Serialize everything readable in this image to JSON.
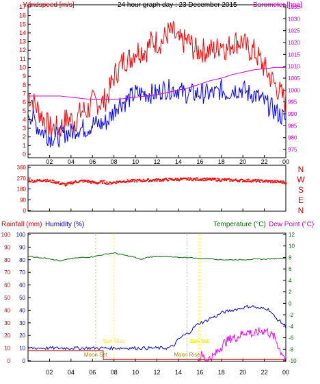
{
  "colors": {
    "wind": "#ff0000",
    "gust": "#ff0000",
    "avg": "#0000ff",
    "baro": "#cc00cc",
    "direction": "#ff0000",
    "rain": "#cc0000",
    "humidity": "#0000cc",
    "temperature": "#006600",
    "dewpoint": "#ff00ff",
    "suntext": "#ffee00",
    "moontext": "#aa8800"
  },
  "chart_data": [
    {
      "type": "line",
      "title": "24 hour graph day : 23 December 2015",
      "left_axis_label": "Windspeed [m/s]",
      "right_axis_label": "Barometer [hpa]",
      "x_ticks": [
        "02",
        "04",
        "06",
        "08",
        "10",
        "12",
        "14",
        "16",
        "18",
        "20",
        "22",
        "00"
      ],
      "x_range": [
        0,
        24
      ],
      "left_ticks": [
        "0",
        "1",
        "2",
        "3",
        "4",
        "5",
        "6",
        "7",
        "8",
        "9",
        "10",
        "11",
        "12",
        "13",
        "14",
        "15",
        "16",
        "17"
      ],
      "left_range": [
        0,
        17
      ],
      "right_ticks": [
        "975",
        "980",
        "985",
        "990",
        "995",
        "1000",
        "1005",
        "1010",
        "1015",
        "1020",
        "1025",
        "1030",
        "1035"
      ],
      "right_range": [
        973,
        1035
      ],
      "series": [
        {
          "axis": "left",
          "x": [
            0,
            0.5,
            1,
            1.5,
            2,
            2.5,
            3,
            3.5,
            4,
            4.5,
            5,
            5.5,
            6,
            6.5,
            7,
            7.5,
            8,
            8.5,
            9,
            9.5,
            10,
            10.5,
            11,
            11.5,
            12,
            12.5,
            13,
            13.5,
            14,
            14.5,
            15,
            15.5,
            16,
            16.5,
            17,
            17.5,
            18,
            18.5,
            19,
            19.5,
            20,
            20.5,
            21,
            21.5,
            22,
            22.5,
            23,
            23.5,
            24
          ],
          "values": [
            7,
            6,
            5,
            4,
            3,
            3,
            3,
            4,
            4,
            4,
            5,
            5,
            6,
            6,
            6,
            7,
            9,
            10,
            11,
            11,
            12,
            12,
            12,
            13,
            13,
            13,
            14,
            14,
            13,
            13,
            13,
            12,
            12,
            12,
            12,
            12,
            13,
            12,
            13,
            13,
            13,
            12,
            12,
            11,
            10,
            9,
            8,
            7,
            6
          ]
        },
        {
          "axis": "left",
          "x": [
            0,
            0.5,
            1,
            1.5,
            2,
            2.5,
            3,
            3.5,
            4,
            4.5,
            5,
            5.5,
            6,
            6.5,
            7,
            7.5,
            8,
            8.5,
            9,
            9.5,
            10,
            10.5,
            11,
            11.5,
            12,
            12.5,
            13,
            13.5,
            14,
            14.5,
            15,
            15.5,
            16,
            16.5,
            17,
            17.5,
            18,
            18.5,
            19,
            19.5,
            20,
            20.5,
            21,
            21.5,
            22,
            22.5,
            23,
            23.5,
            24
          ],
          "values": [
            5,
            4,
            3,
            2.5,
            2,
            2,
            2,
            2.5,
            2.5,
            3,
            3,
            3,
            3.5,
            3.5,
            3.5,
            4,
            5,
            6,
            6,
            6.5,
            7,
            7,
            7,
            7,
            7,
            7.5,
            7.5,
            7.5,
            7.5,
            7,
            7,
            7,
            7,
            7,
            7,
            7,
            7.5,
            7,
            7.5,
            7.5,
            7.5,
            7,
            7,
            6.5,
            6,
            5.5,
            5,
            4.5,
            4
          ]
        },
        {
          "axis": "right",
          "x": [
            0,
            1,
            2,
            3,
            4,
            5,
            6,
            7,
            8,
            9,
            10,
            11,
            12,
            13,
            14,
            15,
            16,
            17,
            18,
            19,
            20,
            21,
            22,
            23,
            24
          ],
          "values": [
            997.5,
            997.5,
            997.5,
            997.5,
            997,
            996.5,
            996,
            996,
            996,
            996.5,
            997,
            997.5,
            998,
            999,
            1000,
            1001,
            1002.5,
            1004,
            1005,
            1006.5,
            1007.5,
            1008.5,
            1009,
            1009.5,
            1009.5
          ]
        }
      ]
    },
    {
      "type": "scatter",
      "label_letters": [
        "N",
        "W",
        "S",
        "E",
        "N"
      ],
      "y_ticks": [
        "360",
        "270",
        "180",
        "90",
        "0"
      ],
      "y_range": [
        0,
        360
      ],
      "x_ticks": [
        "02",
        "04",
        "06",
        "08",
        "10",
        "12",
        "14",
        "16",
        "18",
        "20",
        "22",
        "00"
      ],
      "x_range": [
        0,
        24
      ],
      "series": [
        {
          "x": [
            0,
            0.5,
            1,
            1.5,
            2,
            2.5,
            3,
            3.5,
            4,
            4.5,
            5,
            5.5,
            6,
            6.5,
            7,
            7.5,
            8,
            8.5,
            9,
            9.5,
            10,
            10.5,
            11,
            11.5,
            12,
            12.5,
            13,
            13.5,
            14,
            14.5,
            15,
            15.5,
            16,
            16.5,
            17,
            17.5,
            18,
            18.5,
            19,
            19.5,
            20,
            20.5,
            21,
            21.5,
            22,
            22.5,
            23,
            23.5,
            24
          ],
          "values": [
            250,
            245,
            250,
            255,
            245,
            240,
            225,
            215,
            230,
            240,
            245,
            245,
            235,
            230,
            240,
            225,
            235,
            240,
            245,
            245,
            248,
            250,
            252,
            252,
            255,
            255,
            258,
            258,
            260,
            260,
            262,
            260,
            262,
            260,
            258,
            258,
            255,
            255,
            253,
            252,
            250,
            250,
            248,
            246,
            245,
            242,
            240,
            238,
            235
          ]
        }
      ]
    },
    {
      "type": "line",
      "left_axis_label": "Rainfall (mm)",
      "left2_axis_label": "Humidity (%)",
      "right_axis_label": "Temperature (°C)",
      "right2_axis_label": "Dew Point (°C)",
      "x_ticks": [
        "02",
        "04",
        "06",
        "08",
        "10",
        "12",
        "14",
        "16",
        "18",
        "20",
        "22",
        "00"
      ],
      "x_range": [
        0,
        24
      ],
      "left_ticks": [
        "0",
        "10",
        "20",
        "30",
        "40",
        "50",
        "60",
        "70",
        "80",
        "90",
        "100"
      ],
      "left_range": [
        0,
        100
      ],
      "right_ticks": [
        "12",
        "10",
        "8",
        "6",
        "4",
        "2",
        "0",
        "-2",
        "-4",
        "-6",
        "-8",
        "-10"
      ],
      "right_range": [
        -10,
        12
      ],
      "annotations": [
        {
          "text": "Sun Rise",
          "x": 8.0
        },
        {
          "text": "Sun Set",
          "x": 15.9
        },
        {
          "text": "Moon Set",
          "x": 6.3
        },
        {
          "text": "Moon Rise",
          "x": 14.8
        },
        {
          "text": "Sun Set",
          "x": 16.0
        }
      ],
      "series": [
        {
          "name": "Temperature",
          "axis": "right",
          "x": [
            0,
            1,
            2,
            3,
            4,
            5,
            6,
            7,
            8,
            9,
            10,
            10.5,
            11,
            12,
            13,
            14,
            15,
            16,
            17,
            18,
            19,
            20,
            21,
            22,
            23,
            24
          ],
          "values": [
            8.2,
            8.0,
            7.8,
            7.4,
            7.8,
            8.0,
            8.1,
            8.5,
            8.8,
            8.4,
            8.0,
            7.6,
            8.0,
            8.2,
            8.1,
            8.0,
            8.0,
            7.8,
            7.8,
            7.6,
            7.6,
            7.6,
            7.7,
            7.7,
            7.8,
            7.9
          ]
        },
        {
          "name": "Dew Point",
          "axis": "right",
          "x": [
            15.8,
            16.2,
            16.6,
            17,
            17.4,
            17.8,
            18.2,
            18.6,
            19,
            19.4,
            19.8,
            20.2,
            20.6,
            21,
            21.4,
            21.8,
            22.2,
            22.6,
            23,
            23.4,
            23.8,
            24
          ],
          "values": [
            -10,
            -9,
            -10,
            -9.5,
            -9,
            -8,
            -7,
            -6.5,
            -6,
            -6,
            -5.5,
            -5,
            -5,
            -5.5,
            -5,
            -4.8,
            -4.7,
            -5.5,
            -6,
            -8,
            -9,
            -10
          ]
        },
        {
          "name": "Humidity",
          "axis": "left",
          "x": [
            0,
            2,
            4,
            6,
            8,
            10,
            12,
            13,
            13.6,
            14,
            14.5,
            15,
            15.5,
            16,
            16.5,
            17,
            17.5,
            18,
            18.5,
            19,
            19.5,
            20,
            20.5,
            21,
            21.5,
            22,
            22.5,
            23,
            23.5,
            24
          ],
          "values": [
            10,
            10,
            10,
            10,
            10,
            10,
            10,
            10,
            12,
            17,
            20,
            22,
            27,
            30,
            31,
            34,
            35,
            38,
            39,
            40,
            41,
            42,
            43,
            43,
            41,
            42,
            40,
            34,
            31,
            27
          ]
        },
        {
          "name": "Rainfall",
          "axis": "left",
          "x": [
            0,
            7,
            7.01,
            24
          ],
          "values": [
            7.8,
            7.8,
            1,
            1
          ]
        }
      ]
    }
  ]
}
